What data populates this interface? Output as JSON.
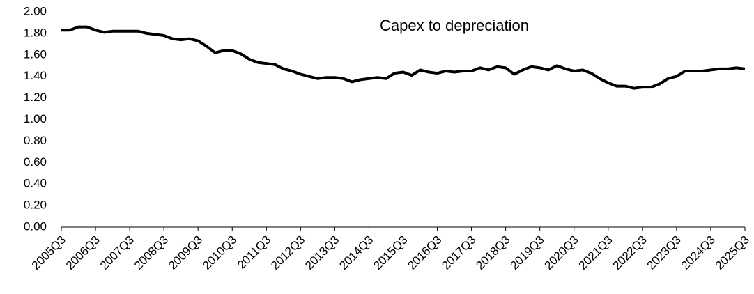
{
  "chart_data": {
    "type": "line",
    "title": "Capex to depreciation",
    "categories": [
      "2005Q3",
      null,
      null,
      null,
      "2006Q3",
      null,
      null,
      null,
      "2007Q3",
      null,
      null,
      null,
      "2008Q3",
      null,
      null,
      null,
      "2009Q3",
      null,
      null,
      null,
      "2010Q3",
      null,
      null,
      null,
      "2011Q3",
      null,
      null,
      null,
      "2012Q3",
      null,
      null,
      null,
      "2013Q3",
      null,
      null,
      null,
      "2014Q3",
      null,
      null,
      null,
      "2015Q3",
      null,
      null,
      null,
      "2016Q3",
      null,
      null,
      null,
      "2017Q3",
      null,
      null,
      null,
      "2018Q3",
      null,
      null,
      null,
      "2019Q3",
      null,
      null,
      null,
      "2020Q3",
      null,
      null,
      null,
      "2021Q3",
      null,
      null,
      null,
      "2022Q3",
      null,
      null,
      null,
      "2023Q3",
      null,
      null,
      null,
      "2024Q3",
      null,
      null,
      null,
      "2025Q3"
    ],
    "values": [
      1.83,
      1.83,
      1.86,
      1.86,
      1.83,
      1.81,
      1.82,
      1.82,
      1.82,
      1.82,
      1.8,
      1.79,
      1.78,
      1.75,
      1.74,
      1.75,
      1.73,
      1.68,
      1.62,
      1.64,
      1.64,
      1.61,
      1.56,
      1.53,
      1.52,
      1.51,
      1.47,
      1.45,
      1.42,
      1.4,
      1.38,
      1.39,
      1.39,
      1.38,
      1.35,
      1.37,
      1.38,
      1.39,
      1.38,
      1.43,
      1.44,
      1.41,
      1.46,
      1.44,
      1.43,
      1.45,
      1.44,
      1.45,
      1.45,
      1.48,
      1.46,
      1.49,
      1.48,
      1.42,
      1.46,
      1.49,
      1.48,
      1.46,
      1.5,
      1.47,
      1.45,
      1.46,
      1.43,
      1.38,
      1.34,
      1.31,
      1.31,
      1.29,
      1.3,
      1.3,
      1.33,
      1.38,
      1.4,
      1.45,
      1.45,
      1.45,
      1.46,
      1.47,
      1.47,
      1.48,
      1.47
    ],
    "color": "#000000",
    "ylim": [
      0,
      2
    ],
    "yticks": [
      {
        "value": 0,
        "label": "0.00"
      },
      {
        "value": 0.2,
        "label": "0.20"
      },
      {
        "value": 0.4,
        "label": "0.40"
      },
      {
        "value": 0.6,
        "label": "0.60"
      },
      {
        "value": 0.8,
        "label": "0.80"
      },
      {
        "value": 1,
        "label": "1.00"
      },
      {
        "value": 1.2,
        "label": "1.20"
      },
      {
        "value": 1.4,
        "label": "1.40"
      },
      {
        "value": 1.6,
        "label": "1.60"
      },
      {
        "value": 1.8,
        "label": "1.80"
      },
      {
        "value": 2,
        "label": "2.00"
      }
    ],
    "grid": false
  }
}
